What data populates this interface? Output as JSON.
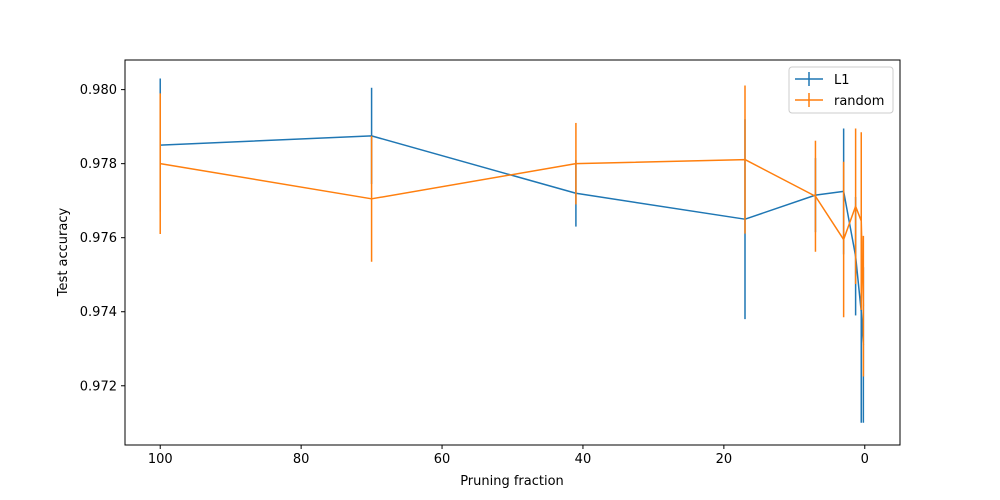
{
  "chart_data": {
    "type": "line",
    "title": "",
    "xlabel": "Pruning fraction",
    "ylabel": "Test accuracy",
    "xlim": [
      105,
      -5
    ],
    "ylim": [
      0.9704,
      0.9808
    ],
    "x_inverted": true,
    "xticks": [
      100,
      80,
      60,
      40,
      20,
      0
    ],
    "yticks": [
      0.972,
      0.974,
      0.976,
      0.978,
      0.98
    ],
    "ytick_labels": [
      "0.972",
      "0.974",
      "0.976",
      "0.978",
      "0.980"
    ],
    "grid": false,
    "legend_position": "top-right",
    "series": [
      {
        "name": "L1",
        "color": "#1f77b4",
        "x": [
          100,
          70,
          41,
          17,
          7,
          3,
          1.3,
          0.5,
          0.2
        ],
        "y": [
          0.9785,
          0.97875,
          0.9772,
          0.9765,
          0.97715,
          0.97725,
          0.9755,
          0.974,
          0.9731
        ],
        "err": [
          0.0018,
          0.0013,
          0.0009,
          0.0027,
          0.001,
          0.0017,
          0.0016,
          0.003,
          0.0021
        ]
      },
      {
        "name": "random",
        "color": "#ff7f0e",
        "x": [
          100,
          70,
          41,
          17,
          7,
          3,
          1.3,
          0.5,
          0.2
        ],
        "y": [
          0.978,
          0.97705,
          0.978,
          0.97811,
          0.97712,
          0.97595,
          0.97685,
          0.97645,
          0.97415
        ],
        "err": [
          0.0019,
          0.0017,
          0.0011,
          0.002,
          0.0015,
          0.0021,
          0.0021,
          0.0024,
          0.0019
        ]
      }
    ]
  }
}
